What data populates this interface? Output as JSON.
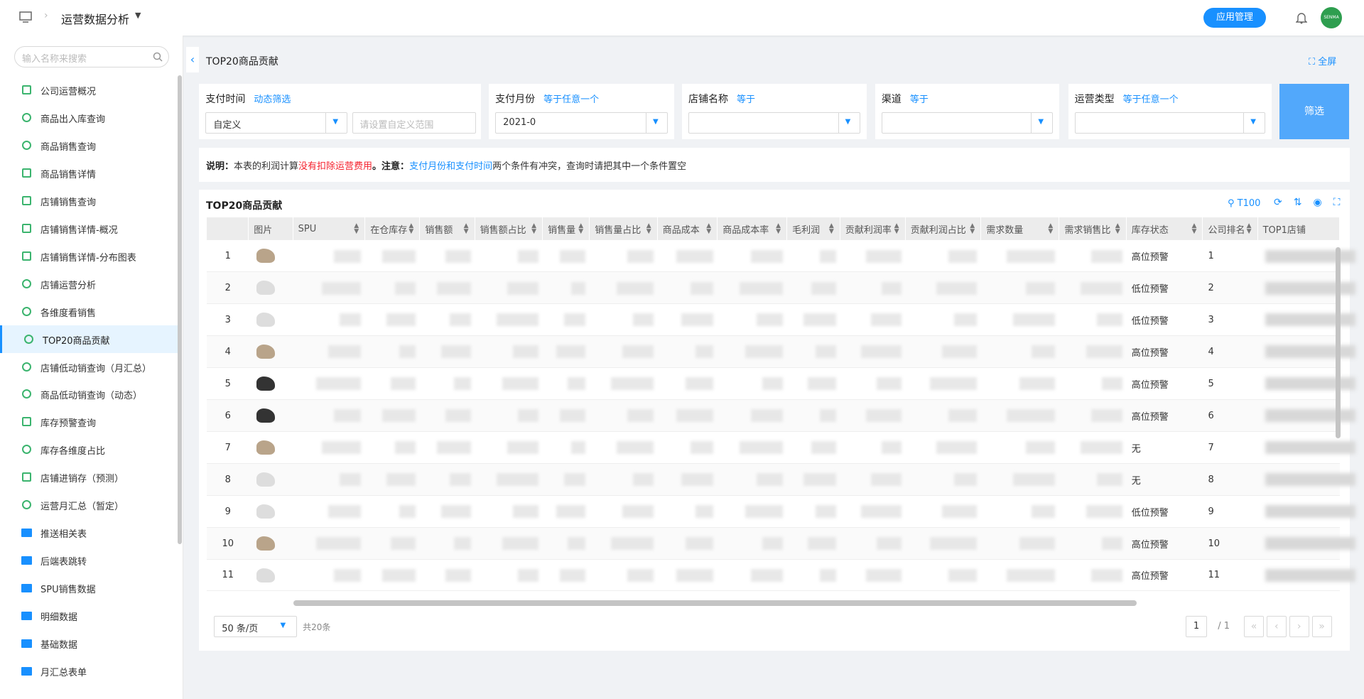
{
  "header": {
    "app_title": "运营数据分析",
    "button": "应用管理",
    "avatar": "SENMA"
  },
  "sidebar": {
    "search_placeholder": "输入名称来搜索",
    "active_index": 9,
    "items": [
      {
        "label": "公司运营概况",
        "icon": "chart"
      },
      {
        "label": "商品出入库查询",
        "icon": "report"
      },
      {
        "label": "商品销售查询",
        "icon": "report"
      },
      {
        "label": "商品销售详情",
        "icon": "doc"
      },
      {
        "label": "店铺销售查询",
        "icon": "user"
      },
      {
        "label": "店铺销售详情-概况",
        "icon": "doc"
      },
      {
        "label": "店铺销售详情-分布图表",
        "icon": "doc"
      },
      {
        "label": "店铺运营分析",
        "icon": "report"
      },
      {
        "label": "各维度看销售",
        "icon": "report"
      },
      {
        "label": "TOP20商品贡献",
        "icon": "report"
      },
      {
        "label": "店铺低动销查询（月汇总）",
        "icon": "report"
      },
      {
        "label": "商品低动销查询（动态）",
        "icon": "report"
      },
      {
        "label": "库存预警查询",
        "icon": "doc"
      },
      {
        "label": "库存各维度占比",
        "icon": "report"
      },
      {
        "label": "店铺进销存（预测）",
        "icon": "doc"
      },
      {
        "label": "运营月汇总（暂定）",
        "icon": "report"
      },
      {
        "label": "推送相关表",
        "icon": "folder"
      },
      {
        "label": "后端表跳转",
        "icon": "folder"
      },
      {
        "label": "SPU销售数据",
        "icon": "folder"
      },
      {
        "label": "明细数据",
        "icon": "folder"
      },
      {
        "label": "基础数据",
        "icon": "folder"
      },
      {
        "label": "月汇总表单",
        "icon": "folder"
      }
    ]
  },
  "page": {
    "title": "TOP20商品贡献",
    "fullscreen": "全屏"
  },
  "filters": [
    {
      "label": "支付时间",
      "operator": "动态筛选",
      "value": "自定义",
      "range_placeholder": "请设置自定义范围"
    },
    {
      "label": "支付月份",
      "operator": "等于任意一个",
      "value": "2021-0"
    },
    {
      "label": "店铺名称",
      "operator": "等于"
    },
    {
      "label": "渠道",
      "operator": "等于"
    },
    {
      "label": "运营类型",
      "operator": "等于任意一个"
    }
  ],
  "filter_button": "筛选",
  "note": [
    {
      "text": "说明：",
      "style": "bold"
    },
    {
      "text": "本表的利润计算",
      "style": "plain"
    },
    {
      "text": "没有扣除运营费用",
      "style": "red"
    },
    {
      "text": "。注意：",
      "style": "bold"
    },
    {
      "text": "支付月份和支付时间",
      "style": "blue"
    },
    {
      "text": "两个条件有冲突，查询时请把其中一个条件置空",
      "style": "plain"
    }
  ],
  "table": {
    "title": "TOP20商品贡献",
    "toolbar_search": "T100",
    "columns": [
      "图片",
      "SPU",
      "在仓库存",
      "销售额",
      "销售额占比",
      "销售量",
      "销售量占比",
      "商品成本",
      "商品成本率",
      "毛利润",
      "贡献利润率",
      "贡献利润占比",
      "需求数量",
      "需求销售比",
      "库存状态",
      "公司排名",
      "TOP1店铺"
    ],
    "rows": [
      {
        "index": "1",
        "status": "高位预警",
        "rank": "1"
      },
      {
        "index": "2",
        "status": "低位预警",
        "rank": "2"
      },
      {
        "index": "3",
        "status": "低位预警",
        "rank": "3"
      },
      {
        "index": "4",
        "status": "高位预警",
        "rank": "4"
      },
      {
        "index": "5",
        "status": "高位预警",
        "rank": "5"
      },
      {
        "index": "6",
        "status": "高位预警",
        "rank": "6"
      },
      {
        "index": "7",
        "status": "无",
        "rank": "7"
      },
      {
        "index": "8",
        "status": "无",
        "rank": "8"
      },
      {
        "index": "9",
        "status": "低位预警",
        "rank": "9"
      },
      {
        "index": "10",
        "status": "高位预警",
        "rank": "10"
      },
      {
        "index": "11",
        "status": "高位预警",
        "rank": "11"
      }
    ]
  },
  "pagination": {
    "page_size": "50 条/页",
    "total": "共20条",
    "current": "1",
    "pages": "/ 1"
  }
}
